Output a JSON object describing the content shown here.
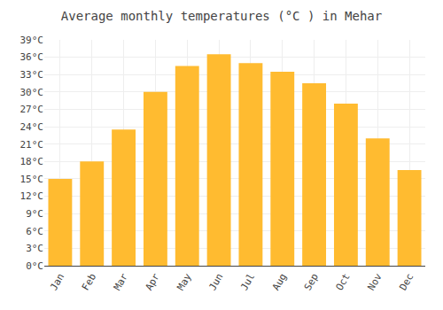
{
  "chart_data": {
    "type": "bar",
    "title": "Average monthly temperatures (°C ) in Mehar",
    "categories": [
      "Jan",
      "Feb",
      "Mar",
      "Apr",
      "May",
      "Jun",
      "Jul",
      "Aug",
      "Sep",
      "Oct",
      "Nov",
      "Dec"
    ],
    "values": [
      15,
      18,
      23.5,
      30,
      34.5,
      36.5,
      35,
      33.5,
      31.5,
      28,
      22,
      16.5
    ],
    "color": "#FFBB30",
    "ylim": [
      0,
      39
    ],
    "yticks": [
      {
        "value": 0,
        "label": "0°C"
      },
      {
        "value": 3,
        "label": "3°C"
      },
      {
        "value": 6,
        "label": "6°C"
      },
      {
        "value": 9,
        "label": "9°C"
      },
      {
        "value": 12,
        "label": "12°C"
      },
      {
        "value": 15,
        "label": "15°C"
      },
      {
        "value": 18,
        "label": "18°C"
      },
      {
        "value": 21,
        "label": "21°C"
      },
      {
        "value": 24,
        "label": "24°C"
      },
      {
        "value": 27,
        "label": "27°C"
      },
      {
        "value": 30,
        "label": "30°C"
      },
      {
        "value": 33,
        "label": "33°C"
      },
      {
        "value": 36,
        "label": "36°C"
      },
      {
        "value": 39,
        "label": "39°C"
      }
    ],
    "grid": true
  }
}
